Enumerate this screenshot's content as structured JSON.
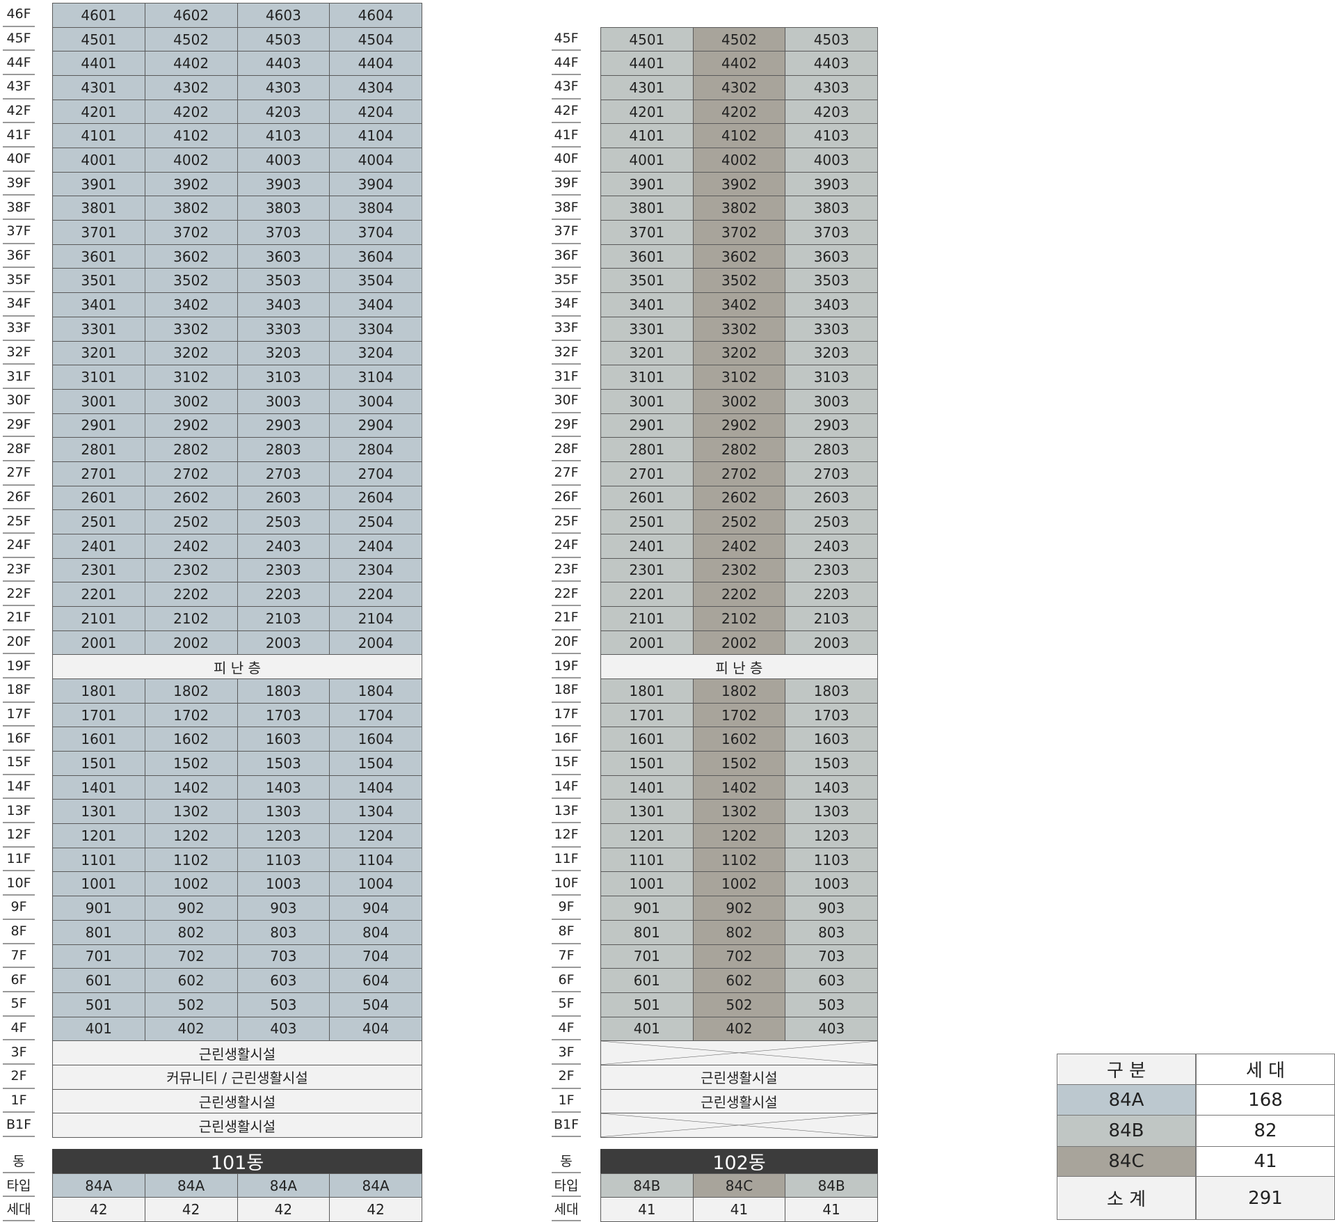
{
  "colors": {
    "84A": "#bcc8cf",
    "84B": "#c0c6c4",
    "84C": "#a8a49b",
    "facility": "#f2f2f2",
    "dong_bar": "#3c3c3c"
  },
  "labels": {
    "dong": "동",
    "type": "타입",
    "households": "세대"
  },
  "buildings": [
    {
      "name": "101동",
      "column_types": [
        "84A",
        "84A",
        "84A",
        "84A"
      ],
      "household_counts": [
        "42",
        "42",
        "42",
        "42"
      ],
      "rows": [
        {
          "f": "46F",
          "u": [
            "4601",
            "4602",
            "4603",
            "4604"
          ]
        },
        {
          "f": "45F",
          "u": [
            "4501",
            "4502",
            "4503",
            "4504"
          ]
        },
        {
          "f": "44F",
          "u": [
            "4401",
            "4402",
            "4403",
            "4404"
          ]
        },
        {
          "f": "43F",
          "u": [
            "4301",
            "4302",
            "4303",
            "4304"
          ]
        },
        {
          "f": "42F",
          "u": [
            "4201",
            "4202",
            "4203",
            "4204"
          ]
        },
        {
          "f": "41F",
          "u": [
            "4101",
            "4102",
            "4103",
            "4104"
          ]
        },
        {
          "f": "40F",
          "u": [
            "4001",
            "4002",
            "4003",
            "4004"
          ]
        },
        {
          "f": "39F",
          "u": [
            "3901",
            "3902",
            "3903",
            "3904"
          ]
        },
        {
          "f": "38F",
          "u": [
            "3801",
            "3802",
            "3803",
            "3804"
          ]
        },
        {
          "f": "37F",
          "u": [
            "3701",
            "3702",
            "3703",
            "3704"
          ]
        },
        {
          "f": "36F",
          "u": [
            "3601",
            "3602",
            "3603",
            "3604"
          ]
        },
        {
          "f": "35F",
          "u": [
            "3501",
            "3502",
            "3503",
            "3504"
          ]
        },
        {
          "f": "34F",
          "u": [
            "3401",
            "3402",
            "3403",
            "3404"
          ]
        },
        {
          "f": "33F",
          "u": [
            "3301",
            "3302",
            "3303",
            "3304"
          ]
        },
        {
          "f": "32F",
          "u": [
            "3201",
            "3202",
            "3203",
            "3204"
          ]
        },
        {
          "f": "31F",
          "u": [
            "3101",
            "3102",
            "3103",
            "3104"
          ]
        },
        {
          "f": "30F",
          "u": [
            "3001",
            "3002",
            "3003",
            "3004"
          ]
        },
        {
          "f": "29F",
          "u": [
            "2901",
            "2902",
            "2903",
            "2904"
          ]
        },
        {
          "f": "28F",
          "u": [
            "2801",
            "2802",
            "2803",
            "2804"
          ]
        },
        {
          "f": "27F",
          "u": [
            "2701",
            "2702",
            "2703",
            "2704"
          ]
        },
        {
          "f": "26F",
          "u": [
            "2601",
            "2602",
            "2603",
            "2604"
          ]
        },
        {
          "f": "25F",
          "u": [
            "2501",
            "2502",
            "2503",
            "2504"
          ]
        },
        {
          "f": "24F",
          "u": [
            "2401",
            "2402",
            "2403",
            "2404"
          ]
        },
        {
          "f": "23F",
          "u": [
            "2301",
            "2302",
            "2303",
            "2304"
          ]
        },
        {
          "f": "22F",
          "u": [
            "2201",
            "2202",
            "2203",
            "2204"
          ]
        },
        {
          "f": "21F",
          "u": [
            "2101",
            "2102",
            "2103",
            "2104"
          ]
        },
        {
          "f": "20F",
          "u": [
            "2001",
            "2002",
            "2003",
            "2004"
          ]
        },
        {
          "f": "19F",
          "span": "피 난 층"
        },
        {
          "f": "18F",
          "u": [
            "1801",
            "1802",
            "1803",
            "1804"
          ]
        },
        {
          "f": "17F",
          "u": [
            "1701",
            "1702",
            "1703",
            "1704"
          ]
        },
        {
          "f": "16F",
          "u": [
            "1601",
            "1602",
            "1603",
            "1604"
          ]
        },
        {
          "f": "15F",
          "u": [
            "1501",
            "1502",
            "1503",
            "1504"
          ]
        },
        {
          "f": "14F",
          "u": [
            "1401",
            "1402",
            "1403",
            "1404"
          ]
        },
        {
          "f": "13F",
          "u": [
            "1301",
            "1302",
            "1303",
            "1304"
          ]
        },
        {
          "f": "12F",
          "u": [
            "1201",
            "1202",
            "1203",
            "1204"
          ]
        },
        {
          "f": "11F",
          "u": [
            "1101",
            "1102",
            "1103",
            "1104"
          ]
        },
        {
          "f": "10F",
          "u": [
            "1001",
            "1002",
            "1003",
            "1004"
          ]
        },
        {
          "f": "9F",
          "u": [
            "901",
            "902",
            "903",
            "904"
          ]
        },
        {
          "f": "8F",
          "u": [
            "801",
            "802",
            "803",
            "804"
          ]
        },
        {
          "f": "7F",
          "u": [
            "701",
            "702",
            "703",
            "704"
          ]
        },
        {
          "f": "6F",
          "u": [
            "601",
            "602",
            "603",
            "604"
          ]
        },
        {
          "f": "5F",
          "u": [
            "501",
            "502",
            "503",
            "504"
          ]
        },
        {
          "f": "4F",
          "u": [
            "401",
            "402",
            "403",
            "404"
          ]
        },
        {
          "f": "3F",
          "span": "근린생활시설"
        },
        {
          "f": "2F",
          "span": "커뮤니티 / 근린생활시설"
        },
        {
          "f": "1F",
          "span": "근린생활시설"
        },
        {
          "f": "B1F",
          "span": "근린생활시설"
        }
      ]
    },
    {
      "name": "102동",
      "column_types": [
        "84B",
        "84C",
        "84B"
      ],
      "household_counts": [
        "41",
        "41",
        "41"
      ],
      "rows": [
        {
          "f": "45F",
          "u": [
            "4501",
            "4502",
            "4503"
          ]
        },
        {
          "f": "44F",
          "u": [
            "4401",
            "4402",
            "4403"
          ]
        },
        {
          "f": "43F",
          "u": [
            "4301",
            "4302",
            "4303"
          ]
        },
        {
          "f": "42F",
          "u": [
            "4201",
            "4202",
            "4203"
          ]
        },
        {
          "f": "41F",
          "u": [
            "4101",
            "4102",
            "4103"
          ]
        },
        {
          "f": "40F",
          "u": [
            "4001",
            "4002",
            "4003"
          ]
        },
        {
          "f": "39F",
          "u": [
            "3901",
            "3902",
            "3903"
          ]
        },
        {
          "f": "38F",
          "u": [
            "3801",
            "3802",
            "3803"
          ]
        },
        {
          "f": "37F",
          "u": [
            "3701",
            "3702",
            "3703"
          ]
        },
        {
          "f": "36F",
          "u": [
            "3601",
            "3602",
            "3603"
          ]
        },
        {
          "f": "35F",
          "u": [
            "3501",
            "3502",
            "3503"
          ]
        },
        {
          "f": "34F",
          "u": [
            "3401",
            "3402",
            "3403"
          ]
        },
        {
          "f": "33F",
          "u": [
            "3301",
            "3302",
            "3303"
          ]
        },
        {
          "f": "32F",
          "u": [
            "3201",
            "3202",
            "3203"
          ]
        },
        {
          "f": "31F",
          "u": [
            "3101",
            "3102",
            "3103"
          ]
        },
        {
          "f": "30F",
          "u": [
            "3001",
            "3002",
            "3003"
          ]
        },
        {
          "f": "29F",
          "u": [
            "2901",
            "2902",
            "2903"
          ]
        },
        {
          "f": "28F",
          "u": [
            "2801",
            "2802",
            "2803"
          ]
        },
        {
          "f": "27F",
          "u": [
            "2701",
            "2702",
            "2703"
          ]
        },
        {
          "f": "26F",
          "u": [
            "2601",
            "2602",
            "2603"
          ]
        },
        {
          "f": "25F",
          "u": [
            "2501",
            "2502",
            "2503"
          ]
        },
        {
          "f": "24F",
          "u": [
            "2401",
            "2402",
            "2403"
          ]
        },
        {
          "f": "23F",
          "u": [
            "2301",
            "2302",
            "2303"
          ]
        },
        {
          "f": "22F",
          "u": [
            "2201",
            "2202",
            "2203"
          ]
        },
        {
          "f": "21F",
          "u": [
            "2101",
            "2102",
            "2103"
          ]
        },
        {
          "f": "20F",
          "u": [
            "2001",
            "2002",
            "2003"
          ]
        },
        {
          "f": "19F",
          "span": "피 난 층"
        },
        {
          "f": "18F",
          "u": [
            "1801",
            "1802",
            "1803"
          ]
        },
        {
          "f": "17F",
          "u": [
            "1701",
            "1702",
            "1703"
          ]
        },
        {
          "f": "16F",
          "u": [
            "1601",
            "1602",
            "1603"
          ]
        },
        {
          "f": "15F",
          "u": [
            "1501",
            "1502",
            "1503"
          ]
        },
        {
          "f": "14F",
          "u": [
            "1401",
            "1402",
            "1403"
          ]
        },
        {
          "f": "13F",
          "u": [
            "1301",
            "1302",
            "1303"
          ]
        },
        {
          "f": "12F",
          "u": [
            "1201",
            "1202",
            "1203"
          ]
        },
        {
          "f": "11F",
          "u": [
            "1101",
            "1102",
            "1103"
          ]
        },
        {
          "f": "10F",
          "u": [
            "1001",
            "1002",
            "1003"
          ]
        },
        {
          "f": "9F",
          "u": [
            "901",
            "902",
            "903"
          ]
        },
        {
          "f": "8F",
          "u": [
            "801",
            "802",
            "803"
          ]
        },
        {
          "f": "7F",
          "u": [
            "701",
            "702",
            "703"
          ]
        },
        {
          "f": "6F",
          "u": [
            "601",
            "602",
            "603"
          ]
        },
        {
          "f": "5F",
          "u": [
            "501",
            "502",
            "503"
          ]
        },
        {
          "f": "4F",
          "u": [
            "401",
            "402",
            "403"
          ]
        },
        {
          "f": "3F",
          "span": "",
          "crossed": true
        },
        {
          "f": "2F",
          "span": "근린생활시설"
        },
        {
          "f": "1F",
          "span": "근린생활시설"
        },
        {
          "f": "B1F",
          "span": "",
          "crossed": true
        }
      ]
    }
  ],
  "summary": {
    "headers": [
      "구 분",
      "세 대"
    ],
    "rows": [
      [
        "84A",
        "168"
      ],
      [
        "84B",
        "82"
      ],
      [
        "84C",
        "41"
      ]
    ],
    "total": [
      "소 계",
      "291"
    ]
  }
}
